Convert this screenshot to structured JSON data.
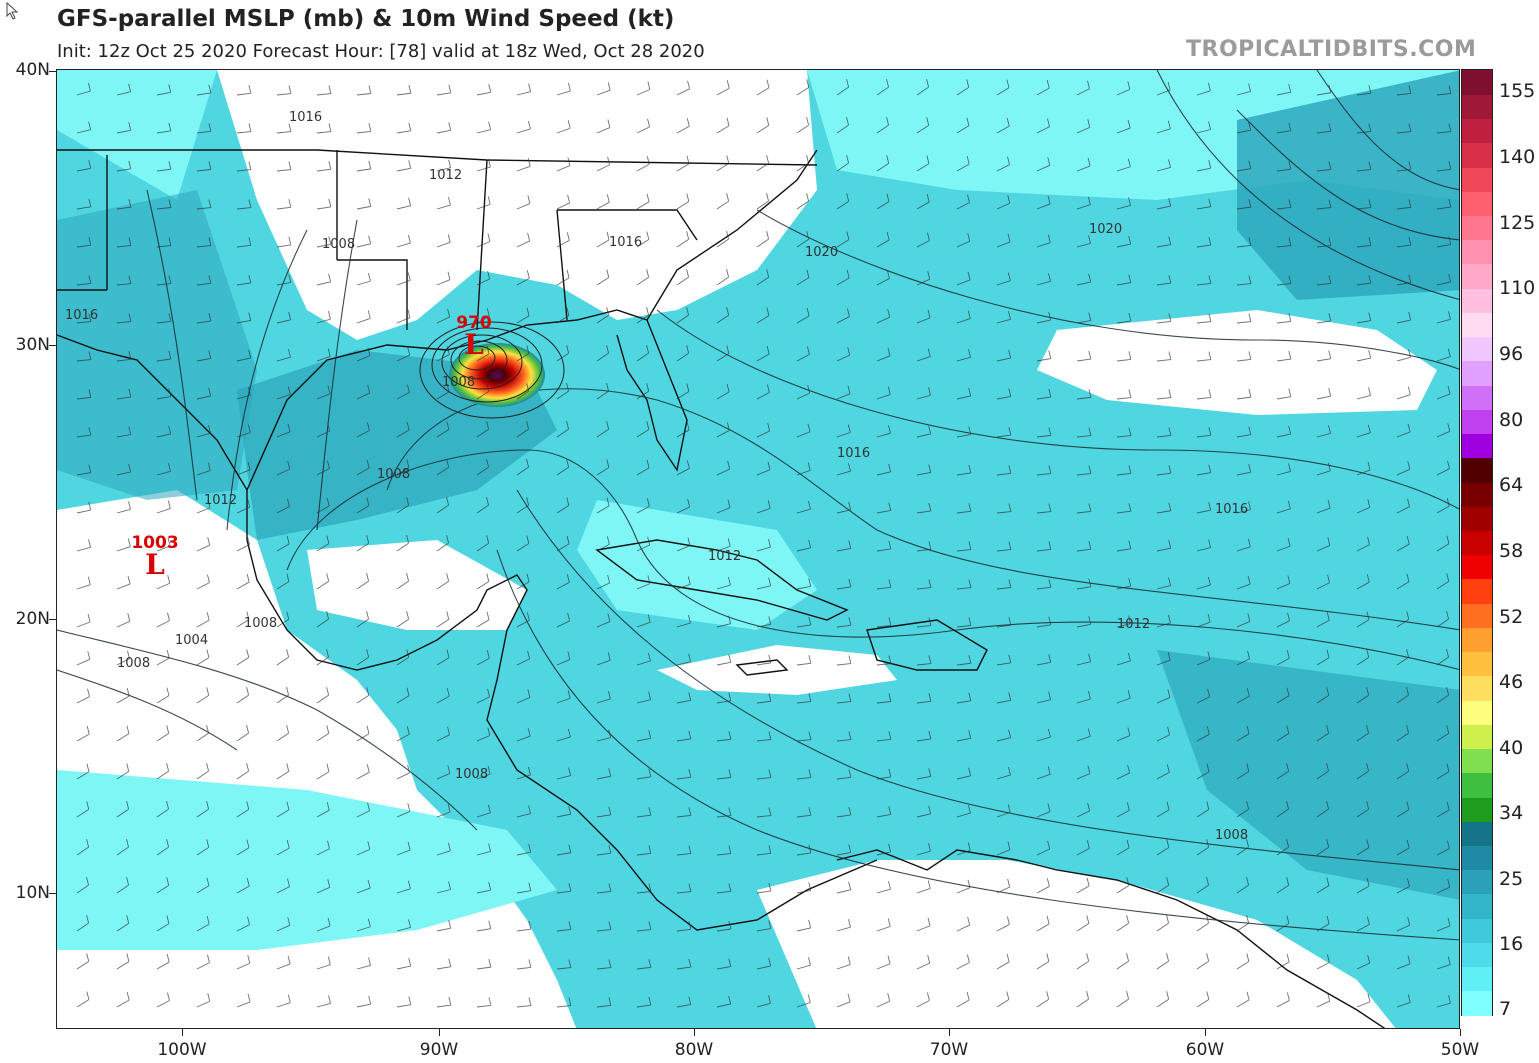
{
  "header": {
    "title": "GFS-parallel MSLP (mb) & 10m Wind Speed (kt)",
    "subtitle": "Init: 12z Oct 25 2020   Forecast Hour: [78]   valid at 18z Wed, Oct 28 2020",
    "brand": "TROPICALTIDBITS.COM"
  },
  "axes": {
    "lat_labels": [
      "40N",
      "30N",
      "20N",
      "10N"
    ],
    "lon_labels": [
      "100W",
      "90W",
      "80W",
      "70W",
      "60W",
      "50W"
    ]
  },
  "colorbar": {
    "labels": [
      "155",
      "140",
      "125",
      "110",
      "96",
      "80",
      "64",
      "58",
      "52",
      "46",
      "40",
      "34",
      "25",
      "16",
      "7"
    ],
    "colors": [
      "#7fffff",
      "#5ff0f5",
      "#4fdcea",
      "#3fc9dc",
      "#33b5c9",
      "#2aa1b7",
      "#1e8aa3",
      "#157488",
      "#1e9c1e",
      "#3fbf3f",
      "#7fdf4f",
      "#cfef4f",
      "#ffff7f",
      "#ffdf5f",
      "#ffbf3f",
      "#ff9f2f",
      "#ff6f1f",
      "#ff3f0f",
      "#ef0000",
      "#c80000",
      "#a00000",
      "#780000",
      "#500000",
      "#a000e0",
      "#c040f0",
      "#d070f8",
      "#e0a0ff",
      "#f0c8ff",
      "#ffdcf0",
      "#ffc0e0",
      "#ffa8c8",
      "#ff90b0",
      "#ff7890",
      "#ff6070",
      "#f04858",
      "#d83048",
      "#c02040",
      "#a01838",
      "#801030"
    ]
  },
  "pressure_labels": [
    "1016",
    "1012",
    "1008",
    "1016",
    "1020",
    "1020",
    "1016",
    "1016",
    "1008",
    "1012",
    "1004",
    "1008",
    "1008",
    "1008",
    "1016",
    "1012",
    "1012",
    "1008",
    "1008",
    "1016"
  ],
  "lows": [
    {
      "value": "970",
      "symbol": "L"
    },
    {
      "value": "1003",
      "symbol": "L"
    }
  ],
  "colors": {
    "light_wind": "#7ff6f6",
    "mid_wind": "#4fd6e0",
    "strong_wind": "#2ea8bd",
    "calm": "#ffffff",
    "low_label": "#d80000"
  }
}
